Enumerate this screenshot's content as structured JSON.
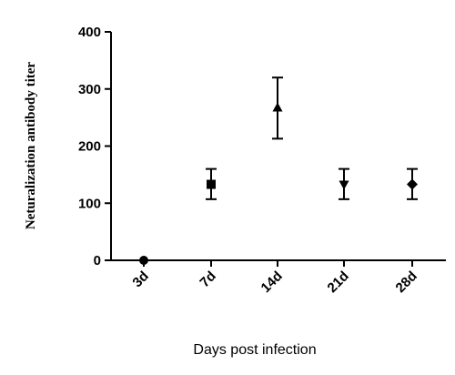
{
  "chart_data": {
    "type": "scatter",
    "categories": [
      "3d",
      "7d",
      "14d",
      "21d",
      "28d"
    ],
    "series": [
      {
        "values": [
          0,
          133,
          267,
          133,
          133
        ],
        "error_low": [
          0,
          107,
          213,
          107,
          107
        ],
        "error_high": [
          0,
          160,
          320,
          160,
          160
        ],
        "markers": [
          "circle",
          "square",
          "triangle-up",
          "triangle-down",
          "diamond"
        ]
      }
    ],
    "title": "",
    "xlabel": "Days post infection",
    "ylabel": "Neturalization antibody titer",
    "ylim": [
      0,
      400
    ],
    "yticks": [
      0,
      100,
      200,
      300,
      400
    ],
    "grid": false,
    "legend": "none"
  }
}
